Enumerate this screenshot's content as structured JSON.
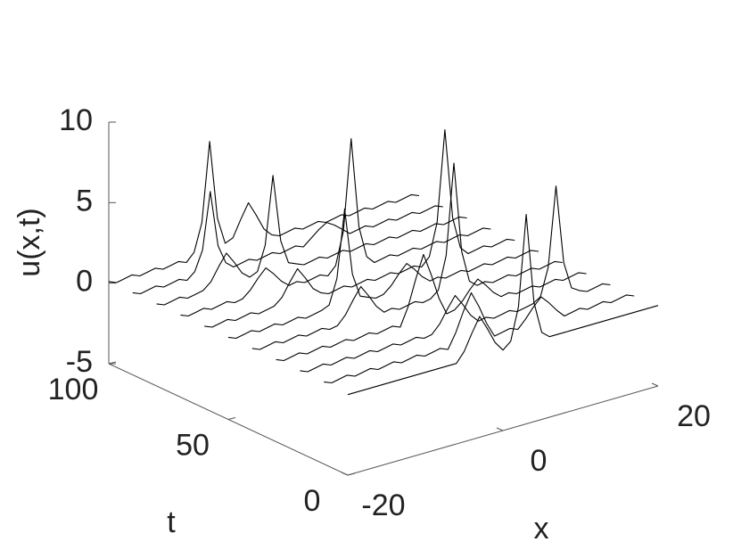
{
  "chart_data": {
    "type": "waterfall3d",
    "xlabel": "x",
    "ylabel": "t",
    "zlabel": "u(x,t)",
    "xlim": [
      -20,
      20
    ],
    "xticks": [
      -20,
      0,
      20
    ],
    "ylim": [
      0,
      100
    ],
    "yticks": [
      0,
      50,
      100
    ],
    "zlim": [
      -5,
      10
    ],
    "zticks": [
      -5,
      0,
      5,
      10
    ],
    "color": "#000000",
    "x": [
      -20,
      -19,
      -18,
      -17,
      -16,
      -15,
      -14,
      -13,
      -12,
      -11,
      -10,
      -9,
      -8,
      -7,
      -6,
      -5,
      -4,
      -3,
      -2,
      -1,
      0,
      1,
      2,
      3,
      4,
      5,
      6,
      7,
      8,
      9,
      10,
      11,
      12,
      13,
      14,
      15,
      16,
      17,
      18,
      19,
      20
    ],
    "t": [
      0,
      10,
      20,
      30,
      40,
      50,
      60,
      70,
      80,
      90,
      100
    ],
    "z": [
      [
        0,
        0,
        0,
        0,
        0,
        0,
        0,
        0,
        0,
        0,
        0,
        0,
        0,
        0,
        0,
        0.6,
        1.6,
        2.5,
        1.6,
        0.6,
        0,
        0.4,
        2.4,
        8,
        2.4,
        0.4,
        0,
        0,
        0,
        0,
        0,
        0,
        0,
        0,
        0,
        0,
        0,
        0,
        0,
        0,
        0
      ],
      [
        0.1,
        -0.1,
        0,
        0.1,
        -0.1,
        0,
        0.1,
        -0.1,
        0,
        0.1,
        -0.1,
        0,
        0.1,
        -0.1,
        0,
        0.1,
        -0.1,
        0.8,
        2,
        3,
        2,
        0.8,
        -0.1,
        0,
        0.1,
        -0.1,
        0.4,
        1,
        1.5,
        1,
        0.4,
        -0.1,
        0,
        0.1,
        -0.1,
        0,
        0.1,
        -0.1,
        0,
        0.1,
        -0.1
      ],
      [
        0.1,
        -0.1,
        0,
        0.1,
        -0.1,
        0,
        0.1,
        -0.1,
        0,
        0.1,
        -0.1,
        0,
        0.1,
        -0.1,
        0,
        0.1,
        -0.1,
        0,
        0.5,
        1.3,
        2,
        1.3,
        0.5,
        0,
        0.1,
        -0.1,
        0,
        0.1,
        -0.1,
        0,
        0.1,
        0.4,
        2.1,
        7,
        2.1,
        0.4,
        0.1,
        -0.1,
        0,
        0.1,
        -0.1
      ],
      [
        0.1,
        -0.1,
        0,
        0.1,
        -0.1,
        0,
        0.1,
        -0.1,
        0,
        0.1,
        -0.1,
        0,
        0.1,
        -0.1,
        0,
        0.1,
        -0.1,
        1,
        2.6,
        4,
        2.6,
        1,
        -0.1,
        0,
        0.4,
        1,
        1.5,
        1,
        0.4,
        0,
        0.1,
        -0.1,
        0,
        0.1,
        -0.1,
        0,
        0.1,
        -0.1,
        0,
        0.1,
        -0.1
      ],
      [
        0.1,
        -0.1,
        0,
        0.1,
        -0.1,
        0,
        0.1,
        -0.1,
        0,
        0.1,
        -0.1,
        0,
        0.5,
        1.3,
        2,
        1.3,
        0.5,
        0,
        0.1,
        -0.1,
        0,
        0.1,
        -0.1,
        0,
        0.4,
        2.4,
        8,
        2.4,
        0.4,
        0,
        0.1,
        -0.1,
        0,
        0.1,
        -0.1,
        0,
        0.1,
        -0.1,
        0,
        0.1,
        -0.1
      ],
      [
        0.1,
        -0.1,
        0,
        0.1,
        -0.1,
        0,
        0.1,
        -0.1,
        0,
        0.1,
        -0.1,
        0,
        0.1,
        0.3,
        1.8,
        6,
        1.8,
        0.3,
        0.1,
        -0.1,
        0,
        0.4,
        1,
        1.5,
        1,
        0.4,
        0,
        0.1,
        -0.1,
        0,
        0.1,
        -0.1,
        0,
        0.1,
        -0.1,
        0,
        0.1,
        -0.1,
        0,
        0.1,
        -0.1
      ],
      [
        0.1,
        -0.1,
        0,
        0.1,
        -0.1,
        0,
        0.1,
        -0.1,
        0,
        0.1,
        0.5,
        1.3,
        2,
        1.3,
        0.5,
        0.1,
        -0.1,
        0,
        0.1,
        -0.1,
        0,
        0.1,
        -0.1,
        0,
        0.1,
        -0.1,
        0,
        0.1,
        -0.1,
        0.4,
        2.4,
        8,
        2.4,
        0.4,
        -0.1,
        0,
        0.1,
        -0.1,
        0,
        0.1,
        -0.1
      ],
      [
        0.1,
        -0.1,
        0,
        0.1,
        -0.1,
        0,
        0.1,
        -0.1,
        0,
        0.4,
        1,
        1.5,
        1,
        0.4,
        0,
        0.1,
        -0.1,
        0,
        0.1,
        -0.1,
        0.4,
        2.4,
        8,
        2.4,
        0.4,
        -0.1,
        0,
        0.1,
        -0.1,
        0,
        0.1,
        -0.1,
        0,
        0.1,
        -0.1,
        0,
        0.1,
        -0.1,
        0,
        0.1,
        -0.1
      ],
      [
        0.1,
        -0.1,
        0,
        0.1,
        -0.1,
        0,
        0.1,
        0.5,
        1.3,
        2,
        1.3,
        0.5,
        0.1,
        0.3,
        1.8,
        6,
        1.8,
        0.3,
        0.1,
        -0.1,
        0,
        0.1,
        -0.1,
        0,
        0.1,
        -0.1,
        0,
        0.1,
        -0.1,
        0,
        0.1,
        -0.1,
        0,
        0.1,
        -0.1,
        0,
        0.1,
        -0.1,
        0,
        0.1,
        -0.1
      ],
      [
        0.1,
        -0.1,
        0,
        0.1,
        -0.1,
        0,
        0.1,
        -0.1,
        0.3,
        1.5,
        5,
        1.5,
        0.3,
        -0.1,
        0,
        0.1,
        -0.1,
        0,
        0.1,
        -0.1,
        0,
        0.1,
        -0.1,
        0.3,
        0.7,
        1,
        0.7,
        0.3,
        -0.1,
        0,
        0.1,
        -0.1,
        0,
        0.1,
        -0.1,
        0,
        0.1,
        -0.1,
        0,
        0.1,
        -0.1
      ],
      [
        0.1,
        -0.1,
        0,
        0.1,
        -0.1,
        0,
        0.1,
        -0.1,
        0,
        0.1,
        -0.1,
        0.4,
        2.1,
        7,
        2.1,
        0.4,
        0.6,
        1.6,
        2.5,
        1.6,
        0.6,
        0.1,
        -0.1,
        0,
        0.1,
        -0.1,
        0,
        0.1,
        -0.1,
        0,
        0.1,
        -0.1,
        0,
        0.1,
        -0.1,
        0,
        0.1,
        -0.1,
        0,
        0.1,
        -0.1
      ]
    ]
  }
}
